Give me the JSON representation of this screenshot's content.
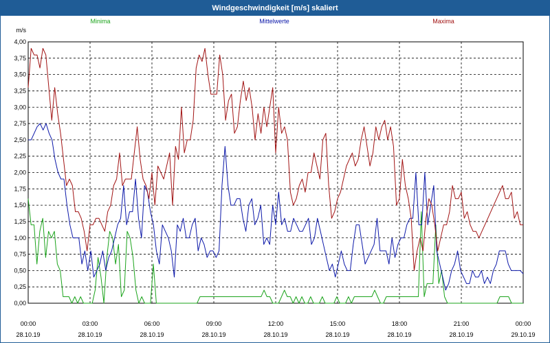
{
  "window": {
    "title": "Windgeschwindigkeit [m/s] skaliert"
  },
  "colors": {
    "titlebar": "#1f5c96",
    "min": "#1aa31a",
    "mean": "#0a16a8",
    "max": "#a11212",
    "grid": "#000000"
  },
  "chart_data": {
    "type": "line",
    "title": "Windgeschwindigkeit [m/s] skaliert",
    "ylabel": "m/s",
    "ylim": [
      0,
      4
    ],
    "yticks": [
      "0,00",
      "0,25",
      "0,50",
      "0,75",
      "1,00",
      "1,25",
      "1,50",
      "1,75",
      "2,00",
      "2,25",
      "2,50",
      "2,75",
      "3,00",
      "3,25",
      "3,50",
      "3,75",
      "4,00"
    ],
    "xlim": [
      0,
      24
    ],
    "xticks": [
      {
        "time": "00:00",
        "date": "28.10.19"
      },
      {
        "time": "03:00",
        "date": "28.10.19"
      },
      {
        "time": "06:00",
        "date": "28.10.19"
      },
      {
        "time": "09:00",
        "date": "28.10.19"
      },
      {
        "time": "12:00",
        "date": "28.10.19"
      },
      {
        "time": "15:00",
        "date": "28.10.19"
      },
      {
        "time": "18:00",
        "date": "28.10.19"
      },
      {
        "time": "21:00",
        "date": "28.10.19"
      },
      {
        "time": "00:00",
        "date": "29.10.19"
      }
    ],
    "grid": true,
    "legend_position": "top",
    "series": [
      {
        "name": "Minima",
        "values": [
          1.6,
          1.2,
          1.2,
          0.6,
          1.1,
          1.3,
          0.7,
          1.1,
          1.0,
          1.1,
          0.6,
          0.5,
          0.1,
          0.1,
          0.1,
          0.0,
          0.1,
          0.0,
          0.1,
          0.0,
          0.0,
          0.0,
          0.0,
          0.2,
          0.7,
          0.4,
          0.0,
          0.7,
          1.1,
          1.0,
          0.6,
          0.9,
          0.1,
          0.2,
          1.1,
          1.0,
          0.7,
          0.2,
          0.0,
          0.1,
          0.0,
          0.0,
          0.0,
          0.6,
          0.0,
          0.0,
          0.0,
          0.0,
          0.0,
          0.0,
          0.0,
          0.0,
          0.0,
          0.0,
          0.0,
          0.0,
          0.0,
          0.0,
          0.0,
          0.1,
          0.1,
          0.1,
          0.1,
          0.1,
          0.1,
          0.1,
          0.1,
          0.1,
          0.1,
          0.1,
          0.1,
          0.1,
          0.1,
          0.1,
          0.1,
          0.1,
          0.1,
          0.1,
          0.1,
          0.1,
          0.1,
          0.2,
          0.1,
          0.1,
          0.0,
          0.0,
          0.0,
          0.1,
          0.2,
          0.1,
          0.1,
          0.0,
          0.1,
          0.0,
          0.1,
          0.0,
          0.0,
          0.1,
          0.0,
          0.0,
          0.0,
          0.1,
          0.0,
          0.0,
          0.0,
          0.0,
          0.1,
          0.0,
          0.0,
          0.0,
          0.1,
          0.0,
          0.1,
          0.1,
          0.1,
          0.1,
          0.1,
          0.1,
          0.1,
          0.2,
          0.1,
          0.0,
          0.0,
          0.1,
          0.1,
          0.1,
          0.1,
          0.1,
          0.1,
          0.1,
          0.1,
          0.1,
          0.1,
          0.1,
          0.1,
          1.4,
          0.1,
          0.3,
          0.3,
          0.3,
          1.2,
          0.3,
          0.5,
          0.1,
          0.0,
          0.0,
          0.0,
          0.0,
          0.0,
          0.0,
          0.0,
          0.0,
          0.0,
          0.0,
          0.0,
          0.0,
          0.0,
          0.0,
          0.0,
          0.0,
          0.0,
          0.0,
          0.1,
          0.1,
          0.1,
          0.1,
          0.0,
          0.0,
          0.0,
          0.0,
          0.0
        ]
      },
      {
        "name": "Mittelwerte",
        "values": [
          2.5,
          2.5,
          2.6,
          2.7,
          2.75,
          2.65,
          2.75,
          2.6,
          2.5,
          2.2,
          2.0,
          1.9,
          1.9,
          1.5,
          1.2,
          1.0,
          1.0,
          1.0,
          0.6,
          0.8,
          0.5,
          0.8,
          0.4,
          0.5,
          0.6,
          0.8,
          0.5,
          0.7,
          0.8,
          1.0,
          1.2,
          1.3,
          1.8,
          1.2,
          1.4,
          1.4,
          1.9,
          1.3,
          1.0,
          1.8,
          1.7,
          1.4,
          1.2,
          0.8,
          0.6,
          1.2,
          1.1,
          1.0,
          0.8,
          0.4,
          1.2,
          1.1,
          1.3,
          1.0,
          1.0,
          1.2,
          1.3,
          0.8,
          1.0,
          0.9,
          0.7,
          0.8,
          0.8,
          0.7,
          0.8,
          1.8,
          2.4,
          1.8,
          1.5,
          1.5,
          1.6,
          1.6,
          1.3,
          1.1,
          1.5,
          1.6,
          1.2,
          1.3,
          1.5,
          0.9,
          1.0,
          0.9,
          1.5,
          1.2,
          1.7,
          1.2,
          1.3,
          1.1,
          1.1,
          1.3,
          1.2,
          1.1,
          1.1,
          1.2,
          1.3,
          0.9,
          1.0,
          1.3,
          1.1,
          0.9,
          0.7,
          0.5,
          0.6,
          0.4,
          0.6,
          0.8,
          0.6,
          0.5,
          0.5,
          0.9,
          1.2,
          1.2,
          0.9,
          0.6,
          0.7,
          0.8,
          0.9,
          1.3,
          0.8,
          0.8,
          0.8,
          0.6,
          1.0,
          0.7,
          0.9,
          1.0,
          1.0,
          1.2,
          1.3,
          1.3,
          2.0,
          1.2,
          1.2,
          2.0,
          1.2,
          1.5,
          1.8,
          0.8,
          0.6,
          0.4,
          0.2,
          0.3,
          0.5,
          0.6,
          0.8,
          0.5,
          0.4,
          0.3,
          0.3,
          0.5,
          0.4,
          0.4,
          0.5,
          0.3,
          0.4,
          0.3,
          0.5,
          0.6,
          0.8,
          0.8,
          0.8,
          0.6,
          0.5,
          0.5,
          0.5,
          0.5,
          0.45
        ]
      },
      {
        "name": "Maxima",
        "values": [
          3.3,
          3.9,
          3.8,
          3.8,
          3.6,
          3.9,
          3.8,
          3.3,
          2.8,
          3.3,
          2.9,
          2.6,
          2.2,
          1.8,
          1.9,
          1.8,
          1.4,
          1.4,
          1.3,
          1.1,
          0.8,
          1.2,
          1.2,
          1.3,
          1.3,
          1.2,
          1.1,
          1.4,
          1.5,
          1.8,
          1.9,
          2.3,
          1.8,
          1.9,
          1.9,
          1.9,
          2.3,
          2.7,
          2.2,
          1.9,
          1.8,
          1.6,
          2.0,
          1.5,
          2.1,
          2.0,
          1.9,
          2.1,
          2.3,
          1.5,
          2.4,
          2.2,
          3.0,
          2.3,
          2.5,
          2.5,
          2.8,
          3.6,
          3.8,
          3.7,
          3.9,
          3.5,
          3.2,
          3.2,
          3.2,
          3.8,
          3.5,
          2.8,
          3.1,
          3.2,
          2.6,
          2.7,
          3.1,
          3.4,
          3.1,
          3.3,
          3.0,
          2.5,
          2.9,
          2.6,
          3.0,
          2.7,
          3.0,
          3.3,
          2.3,
          3.0,
          2.6,
          2.7,
          2.5,
          1.7,
          1.5,
          1.6,
          1.8,
          1.9,
          1.7,
          2.0,
          2.0,
          2.3,
          2.1,
          1.9,
          2.5,
          2.6,
          1.8,
          1.3,
          1.4,
          1.6,
          1.7,
          1.9,
          2.1,
          2.2,
          2.3,
          2.1,
          2.2,
          2.5,
          2.7,
          2.4,
          2.1,
          2.3,
          2.7,
          2.5,
          2.7,
          2.8,
          2.5,
          2.7,
          2.4,
          1.5,
          1.6,
          2.2,
          1.8,
          1.6,
          1.3,
          0.5,
          0.8,
          1.0,
          0.8,
          1.3,
          1.6,
          1.5,
          1.2,
          0.8,
          1.0,
          1.2,
          1.2,
          1.4,
          1.8,
          1.6,
          1.6,
          1.7,
          1.3,
          1.4,
          1.2,
          1.1,
          1.1,
          1.0,
          1.1,
          1.2,
          1.3,
          1.4,
          1.5,
          1.6,
          1.7,
          1.8,
          1.6,
          1.6,
          1.7,
          1.3,
          1.4,
          1.2,
          1.2
        ]
      }
    ]
  }
}
